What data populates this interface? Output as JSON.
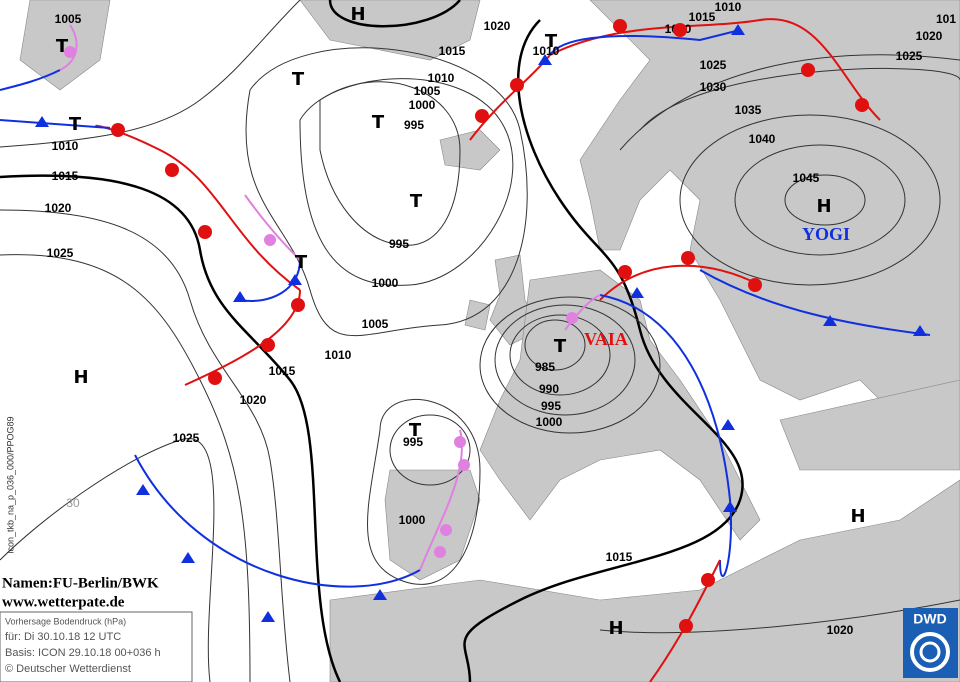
{
  "isobar_labels": [
    1005,
    1020,
    1015,
    1010,
    1015,
    1010,
    1020,
    1025,
    1030,
    1035,
    1040,
    1045,
    1010,
    1005,
    1000,
    995,
    1010,
    1015,
    1020,
    1025,
    995,
    1000,
    1005,
    1010,
    1015,
    1020,
    1025,
    985,
    990,
    995,
    1000,
    995,
    1000,
    1015,
    1020,
    1025,
    1020,
    101
  ],
  "grid_labels": [
    "30"
  ],
  "pressure_centers": [
    "H",
    "T",
    "T",
    "T",
    "T",
    "T",
    "T",
    "H",
    "H",
    "T",
    "T",
    "H",
    "H",
    "T"
  ],
  "system_names": [
    "YOGI",
    "VAIA"
  ],
  "credits": {
    "names": "Namen:FU-Berlin/BWK",
    "website": "www.wetterpate.de"
  },
  "info_box": {
    "title": "Vorhersage Bodendruck (hPa)",
    "valid": "für:  Di 30.10.18  12 UTC",
    "basis": "Basis: ICON  29.10.18 00+036 h",
    "copyright": "© Deutscher Wetterdienst"
  },
  "product_code": "icon_tkb_na_p_036_000/PPOG89",
  "logo": "DWD"
}
